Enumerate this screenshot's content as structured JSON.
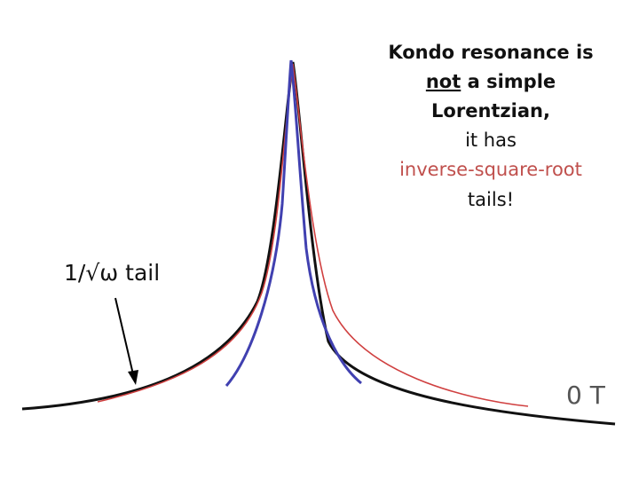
{
  "callout": {
    "line1": "Kondo resonance is",
    "emphasis": "not",
    "line2_rest": "a simple",
    "line3": "Lorentzian,",
    "line4": "it has",
    "line5": "inverse-square-root",
    "line6": "tails!"
  },
  "tail_label": "1/√ω tail",
  "field_label": "0 T"
}
